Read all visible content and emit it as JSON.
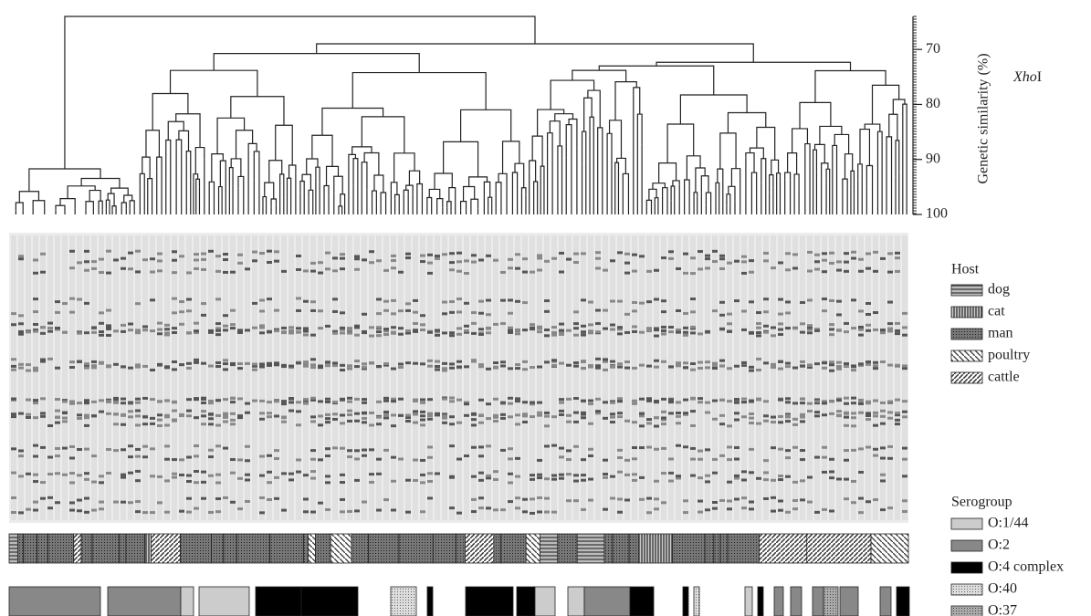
{
  "axis": {
    "label": "Genetic similarity (%)",
    "ylim": [
      64,
      100
    ],
    "yticks": [
      70,
      80,
      90,
      100
    ]
  },
  "enzyme": {
    "italic": "Xho",
    "roman": "I"
  },
  "host_legend": {
    "title": "Host",
    "items": [
      "dog",
      "cat",
      "man",
      "poultry",
      "cattle"
    ]
  },
  "serogroup_legend": {
    "title": "Serogroup",
    "items": [
      "O:1/44",
      "O:2",
      "O:4 complex",
      "O:40",
      "O:37"
    ]
  }
}
